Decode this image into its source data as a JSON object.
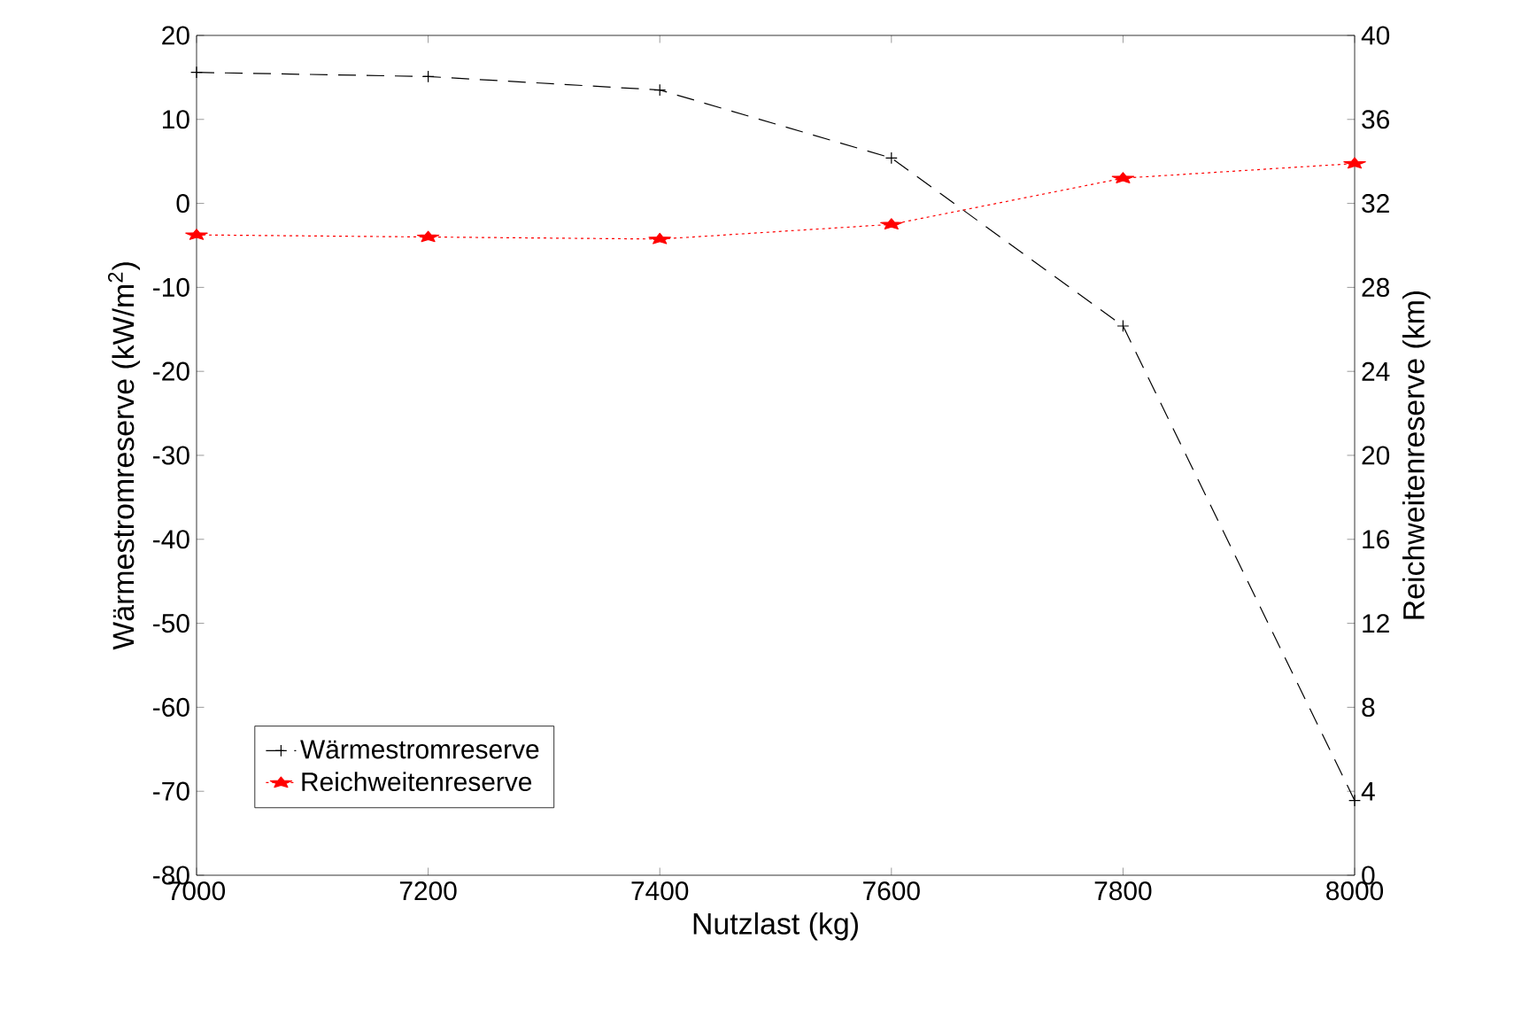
{
  "chart_data": {
    "type": "line",
    "xlabel": "Nutzlast (kg)",
    "ylabel": "Wärmestromreserve (kW/m$^{2}$)",
    "y2label": "Reichweitenreserve (km)",
    "x": [
      7000,
      7200,
      7400,
      7600,
      7800,
      8000
    ],
    "series": [
      {
        "name": "Wärmestromreserve",
        "color": "#000000",
        "marker": "cross",
        "line_style": "dashed",
        "values": [
          15.6,
          15.1,
          13.5,
          5.4,
          -14.6,
          -71.1
        ]
      },
      {
        "name": "Reichweitenreserve",
        "color": "#ff0000",
        "marker": "star",
        "line_style": "dotted",
        "axis": "y2",
        "values": [
          30.5,
          30.4,
          30.3,
          31.0,
          33.2,
          33.9
        ]
      }
    ],
    "xlim": [
      7000,
      8000
    ],
    "xticks": [
      7000,
      7200,
      7400,
      7600,
      7800,
      8000
    ],
    "ylim": [
      -80,
      20
    ],
    "yticks": [
      -80,
      -70,
      -60,
      -50,
      -40,
      -30,
      -20,
      -10,
      0,
      10,
      20
    ],
    "y2lim": [
      0,
      40
    ],
    "y2ticks": [
      0,
      4,
      8,
      12,
      16,
      20,
      24,
      28,
      32,
      36,
      40
    ],
    "legend": "bottom left"
  }
}
